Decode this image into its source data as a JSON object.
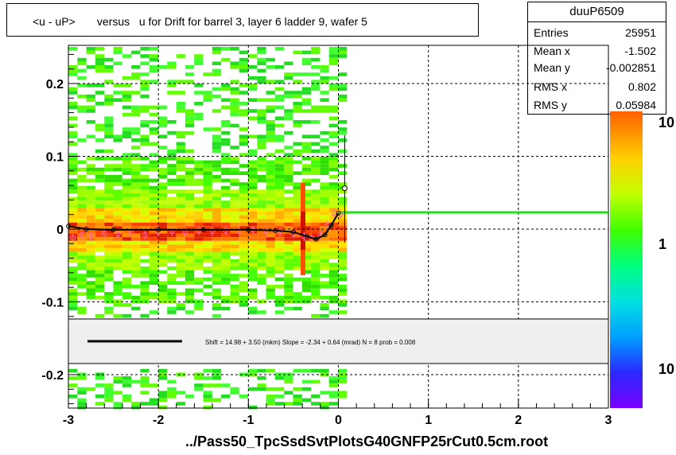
{
  "title": "<u - uP>       versus   u for Drift for barrel 3, layer 6 ladder 9, wafer 5",
  "file_label": "../Pass50_TpcSsdSvtPlotsG40GNFP25rCut0.5cm.root",
  "stats": {
    "name": "duuP6509",
    "rows": [
      {
        "label": "Entries",
        "value": "25951"
      },
      {
        "label": "Mean x",
        "value": "-1.502"
      },
      {
        "label": "Mean y",
        "value": "-0.002851"
      },
      {
        "label": "RMS x",
        "value": "0.802"
      },
      {
        "label": "RMS y",
        "value": "0.05984"
      }
    ]
  },
  "fit_legend": "Shift =    14.98 + 3.50 (mkm) Slope =    -2.34 + 0.64 (mrad)  N = 8 prob = 0.008",
  "colors": {
    "fit_line": "#000000",
    "reference_line": "#22dd22",
    "profile_marker": "#ff6a9a"
  },
  "chart_data": {
    "type": "heatmap",
    "xlim": [
      -3,
      3
    ],
    "ylim": [
      -0.25,
      0.25
    ],
    "x_ticks": [
      "-3",
      "-2",
      "-1",
      "0",
      "1",
      "2",
      "3"
    ],
    "y_ticks": [
      "-0.2",
      "-0.1",
      "0",
      "0.1",
      "0.2"
    ],
    "colorbar_labels": [
      "10",
      "1",
      "10"
    ],
    "grid": true,
    "band_center": 0.0,
    "data_x_range": [
      -3,
      0.05
    ],
    "profile_points": [
      {
        "x": -2.95,
        "y": -0.012
      },
      {
        "x": -2.85,
        "y": -0.008
      },
      {
        "x": -2.75,
        "y": -0.01
      },
      {
        "x": -2.6,
        "y": -0.006
      },
      {
        "x": -2.45,
        "y": -0.007
      },
      {
        "x": -2.3,
        "y": -0.005
      },
      {
        "x": -2.15,
        "y": -0.008
      },
      {
        "x": -2.0,
        "y": -0.004
      },
      {
        "x": -1.85,
        "y": -0.003
      },
      {
        "x": -1.7,
        "y": -0.004
      },
      {
        "x": -1.55,
        "y": -0.002
      },
      {
        "x": -1.4,
        "y": -0.003
      },
      {
        "x": -1.25,
        "y": -0.002
      },
      {
        "x": -1.1,
        "y": -0.003
      },
      {
        "x": -0.95,
        "y": -0.001
      },
      {
        "x": -0.8,
        "y": -0.003
      },
      {
        "x": -0.65,
        "y": -0.004
      },
      {
        "x": -0.5,
        "y": -0.006
      },
      {
        "x": -0.38,
        "y": -0.01
      },
      {
        "x": -0.3,
        "y": -0.012
      },
      {
        "x": -0.2,
        "y": -0.008
      },
      {
        "x": -0.12,
        "y": 0.005
      },
      {
        "x": -0.05,
        "y": 0.022
      },
      {
        "x": 0.02,
        "y": 0.02
      },
      {
        "x": 0.07,
        "y": 0.056
      }
    ],
    "fit_curve": [
      {
        "x": -3.0,
        "y": 0.004
      },
      {
        "x": -2.8,
        "y": 0.0
      },
      {
        "x": -2.5,
        "y": -0.001
      },
      {
        "x": -2.0,
        "y": -0.001
      },
      {
        "x": -1.5,
        "y": -0.001
      },
      {
        "x": -1.0,
        "y": -0.001
      },
      {
        "x": -0.7,
        "y": -0.002
      },
      {
        "x": -0.5,
        "y": -0.004
      },
      {
        "x": -0.35,
        "y": -0.01
      },
      {
        "x": -0.25,
        "y": -0.014
      },
      {
        "x": -0.15,
        "y": -0.008
      },
      {
        "x": -0.08,
        "y": 0.005
      },
      {
        "x": 0.0,
        "y": 0.022
      }
    ],
    "reference_line": {
      "x": [
        0.0,
        3.0
      ],
      "y": 0.023
    }
  }
}
